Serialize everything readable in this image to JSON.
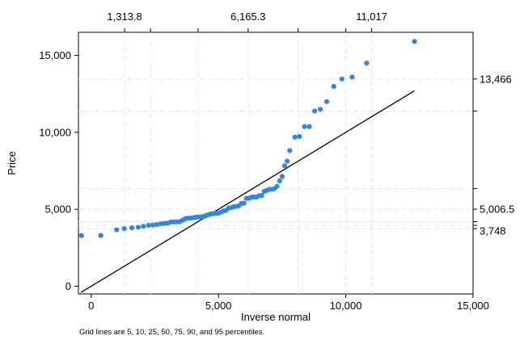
{
  "chart_data": {
    "type": "scatter",
    "title": "",
    "xlabel": "Inverse normal",
    "ylabel": "Price",
    "note": "Grid lines are 5, 10, 25, 50, 75, 90, and 95 percentiles.",
    "xlim": [
      -500,
      15000
    ],
    "ylim": [
      -500,
      16500
    ],
    "x_ticks": [
      {
        "value": 0,
        "label": "0"
      },
      {
        "value": 5000,
        "label": "5,000"
      },
      {
        "value": 10000,
        "label": "10,000"
      },
      {
        "value": 15000,
        "label": "15,000"
      }
    ],
    "y_ticks": [
      {
        "value": 0,
        "label": "0"
      },
      {
        "value": 5000,
        "label": "5,000"
      },
      {
        "value": 10000,
        "label": "10,000"
      },
      {
        "value": 15000,
        "label": "15,000"
      }
    ],
    "top_ticks": [
      {
        "value": 1313.8,
        "label": "1,313.8"
      },
      {
        "value": 6165.3,
        "label": "6,165.3"
      },
      {
        "value": 11017,
        "label": "11,017"
      }
    ],
    "right_ticks": [
      {
        "value": 13466,
        "label": "13,466"
      },
      {
        "value": 5006.5,
        "label": "5,006.5"
      },
      {
        "value": 3748,
        "label": "3,748"
      }
    ],
    "x_percentile_lines": [
      1313.8,
      2330,
      4200,
      6165.3,
      8130,
      10000,
      11017
    ],
    "y_percentile_lines": [
      3748,
      3955,
      4195,
      5006.5,
      6342,
      11385,
      13466
    ],
    "reference_line": {
      "x1": -400,
      "y1": -400,
      "x2": 12700,
      "y2": 12700
    },
    "series": [
      {
        "color": "#2e86e8",
        "points": [
          [
            -380,
            3291
          ],
          [
            380,
            3299
          ],
          [
            1000,
            3667
          ],
          [
            1300,
            3748
          ],
          [
            1600,
            3799
          ],
          [
            1850,
            3829
          ],
          [
            2050,
            3895
          ],
          [
            2250,
            3955
          ],
          [
            2420,
            3984
          ],
          [
            2580,
            4010
          ],
          [
            2730,
            4060
          ],
          [
            2870,
            4082
          ],
          [
            3000,
            4099
          ],
          [
            3130,
            4172
          ],
          [
            3250,
            4181
          ],
          [
            3370,
            4187
          ],
          [
            3480,
            4195
          ],
          [
            3590,
            4296
          ],
          [
            3700,
            4389
          ],
          [
            3800,
            4424
          ],
          [
            3900,
            4425
          ],
          [
            4000,
            4453
          ],
          [
            4100,
            4482
          ],
          [
            4200,
            4499
          ],
          [
            4300,
            4504
          ],
          [
            4400,
            4516
          ],
          [
            4500,
            4589
          ],
          [
            4600,
            4647
          ],
          [
            4700,
            4697
          ],
          [
            4800,
            4723
          ],
          [
            4900,
            4733
          ],
          [
            5000,
            4749
          ],
          [
            5100,
            4816
          ],
          [
            5200,
            4890
          ],
          [
            5300,
            4934
          ],
          [
            5400,
            5079
          ],
          [
            5500,
            5104
          ],
          [
            5600,
            5172
          ],
          [
            5700,
            5189
          ],
          [
            5800,
            5222
          ],
          [
            5900,
            5379
          ],
          [
            6000,
            5397
          ],
          [
            6100,
            5705
          ],
          [
            6200,
            5719
          ],
          [
            6300,
            5788
          ],
          [
            6400,
            5798
          ],
          [
            6500,
            5799
          ],
          [
            6600,
            5886
          ],
          [
            6700,
            5899
          ],
          [
            6800,
            6165
          ],
          [
            6900,
            6229
          ],
          [
            7000,
            6295
          ],
          [
            7100,
            6303
          ],
          [
            7200,
            6342
          ],
          [
            7300,
            6486
          ],
          [
            7400,
            6850
          ],
          [
            7500,
            7140
          ],
          [
            7600,
            7827
          ],
          [
            7700,
            8129
          ],
          [
            7800,
            8814
          ],
          [
            8000,
            9690
          ],
          [
            8180,
            9735
          ],
          [
            8380,
            10371
          ],
          [
            8570,
            10372
          ],
          [
            8780,
            11385
          ],
          [
            9000,
            11497
          ],
          [
            9250,
            11995
          ],
          [
            9530,
            12990
          ],
          [
            9850,
            13466
          ],
          [
            10250,
            13594
          ],
          [
            10820,
            14500
          ],
          [
            12700,
            15906
          ]
        ]
      }
    ]
  }
}
